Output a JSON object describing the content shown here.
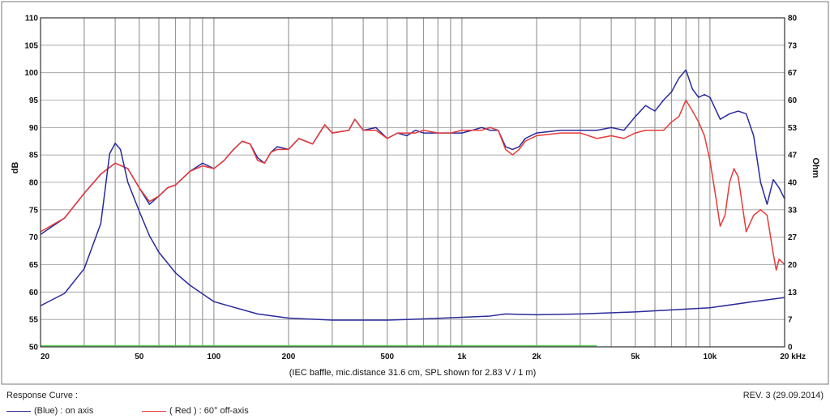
{
  "chart_data": {
    "type": "line",
    "title": "",
    "xscale": "log",
    "xlim": [
      20,
      20000
    ],
    "ylim_left": [
      50,
      110
    ],
    "ylim_right": [
      0,
      80
    ],
    "ylabel_left": "dB",
    "ylabel_right": "Ohm",
    "note": "(IEC baffle, mic.distance 31.6 cm, SPL shown for 2.83 V / 1 m)",
    "grid": true,
    "x_tick_labels": [
      {
        "v": 20,
        "t": "20"
      },
      {
        "v": 50,
        "t": "50"
      },
      {
        "v": 100,
        "t": "100"
      },
      {
        "v": 200,
        "t": "200"
      },
      {
        "v": 500,
        "t": "500"
      },
      {
        "v": 1000,
        "t": "1k"
      },
      {
        "v": 2000,
        "t": "2k"
      },
      {
        "v": 5000,
        "t": "5k"
      },
      {
        "v": 10000,
        "t": "10k"
      },
      {
        "v": 20000,
        "t": "20 kHz"
      }
    ],
    "y_left_ticks": [
      50,
      55,
      60,
      65,
      70,
      75,
      80,
      85,
      90,
      95,
      100,
      105,
      110
    ],
    "y_right_ticks": [
      {
        "p": 0,
        "t": "0"
      },
      {
        "p": 6.67,
        "t": "7"
      },
      {
        "p": 13.33,
        "t": "13"
      },
      {
        "p": 20,
        "t": "20"
      },
      {
        "p": 26.67,
        "t": "27"
      },
      {
        "p": 33.33,
        "t": "33"
      },
      {
        "p": 40,
        "t": "40"
      },
      {
        "p": 46.67,
        "t": "47"
      },
      {
        "p": 53.33,
        "t": "53"
      },
      {
        "p": 60,
        "t": "60"
      },
      {
        "p": 66.67,
        "t": "67"
      },
      {
        "p": 73.33,
        "t": "73"
      },
      {
        "p": 80,
        "t": "80"
      }
    ],
    "series": [
      {
        "name": "on axis",
        "color": "#2a2a9c",
        "axis": "left",
        "points": [
          [
            20,
            70.5
          ],
          [
            25,
            73.5
          ],
          [
            30,
            78
          ],
          [
            35,
            81.5
          ],
          [
            40,
            83.5
          ],
          [
            45,
            82.5
          ],
          [
            50,
            79
          ],
          [
            55,
            76
          ],
          [
            60,
            77.5
          ],
          [
            65,
            79
          ],
          [
            70,
            79.5
          ],
          [
            80,
            82
          ],
          [
            90,
            83.5
          ],
          [
            100,
            82.5
          ],
          [
            110,
            84
          ],
          [
            120,
            86
          ],
          [
            130,
            87.5
          ],
          [
            140,
            87
          ],
          [
            150,
            84.5
          ],
          [
            160,
            83.5
          ],
          [
            170,
            85.5
          ],
          [
            180,
            86.5
          ],
          [
            200,
            86
          ],
          [
            220,
            88
          ],
          [
            250,
            87
          ],
          [
            280,
            90.5
          ],
          [
            300,
            89
          ],
          [
            350,
            89.5
          ],
          [
            370,
            91.5
          ],
          [
            400,
            89.5
          ],
          [
            450,
            90
          ],
          [
            500,
            88
          ],
          [
            550,
            89
          ],
          [
            600,
            88.5
          ],
          [
            650,
            89.5
          ],
          [
            700,
            89
          ],
          [
            800,
            89
          ],
          [
            900,
            89
          ],
          [
            1000,
            89
          ],
          [
            1100,
            89.5
          ],
          [
            1200,
            90
          ],
          [
            1300,
            89.5
          ],
          [
            1400,
            89.5
          ],
          [
            1500,
            86.5
          ],
          [
            1600,
            86
          ],
          [
            1700,
            86.5
          ],
          [
            1800,
            88
          ],
          [
            2000,
            89
          ],
          [
            2500,
            89.5
          ],
          [
            3000,
            89.5
          ],
          [
            3500,
            89.5
          ],
          [
            4000,
            90
          ],
          [
            4500,
            89.5
          ],
          [
            5000,
            92
          ],
          [
            5500,
            94
          ],
          [
            6000,
            93
          ],
          [
            6500,
            95
          ],
          [
            7000,
            96.5
          ],
          [
            7500,
            99
          ],
          [
            8000,
            100.5
          ],
          [
            8500,
            97
          ],
          [
            9000,
            95.5
          ],
          [
            9500,
            96
          ],
          [
            10000,
            95.5
          ],
          [
            11000,
            91.5
          ],
          [
            12000,
            92.5
          ],
          [
            13000,
            93
          ],
          [
            14000,
            92.5
          ],
          [
            15000,
            88.5
          ],
          [
            16000,
            80
          ],
          [
            17000,
            76
          ],
          [
            18000,
            80.5
          ],
          [
            19000,
            79
          ],
          [
            20000,
            77
          ]
        ]
      },
      {
        "name": "60° off-axis",
        "color": "#e83a3a",
        "axis": "left",
        "points": [
          [
            20,
            71
          ],
          [
            25,
            73.5
          ],
          [
            30,
            78
          ],
          [
            35,
            81.5
          ],
          [
            40,
            83.5
          ],
          [
            45,
            82.5
          ],
          [
            50,
            79
          ],
          [
            55,
            76.5
          ],
          [
            60,
            77.5
          ],
          [
            65,
            79
          ],
          [
            70,
            79.5
          ],
          [
            80,
            82
          ],
          [
            90,
            83
          ],
          [
            100,
            82.5
          ],
          [
            110,
            84
          ],
          [
            120,
            86
          ],
          [
            130,
            87.5
          ],
          [
            140,
            87
          ],
          [
            150,
            84
          ],
          [
            160,
            83.5
          ],
          [
            170,
            85.5
          ],
          [
            180,
            86
          ],
          [
            200,
            86
          ],
          [
            220,
            88
          ],
          [
            250,
            87
          ],
          [
            280,
            90.5
          ],
          [
            300,
            89
          ],
          [
            350,
            89.5
          ],
          [
            370,
            91.5
          ],
          [
            400,
            89.5
          ],
          [
            450,
            89.5
          ],
          [
            500,
            88
          ],
          [
            550,
            89
          ],
          [
            600,
            89
          ],
          [
            650,
            89
          ],
          [
            700,
            89.5
          ],
          [
            800,
            89
          ],
          [
            900,
            89
          ],
          [
            1000,
            89.5
          ],
          [
            1100,
            89.5
          ],
          [
            1200,
            89.5
          ],
          [
            1300,
            90
          ],
          [
            1400,
            89.5
          ],
          [
            1500,
            86
          ],
          [
            1600,
            85
          ],
          [
            1700,
            86
          ],
          [
            1800,
            87.5
          ],
          [
            2000,
            88.5
          ],
          [
            2500,
            89
          ],
          [
            3000,
            89
          ],
          [
            3500,
            88
          ],
          [
            4000,
            88.5
          ],
          [
            4500,
            88
          ],
          [
            5000,
            89
          ],
          [
            5500,
            89.5
          ],
          [
            6000,
            89.5
          ],
          [
            6500,
            89.5
          ],
          [
            7000,
            91
          ],
          [
            7500,
            92
          ],
          [
            8000,
            95
          ],
          [
            8500,
            93
          ],
          [
            9000,
            91
          ],
          [
            9500,
            88.5
          ],
          [
            10000,
            84
          ],
          [
            10500,
            78
          ],
          [
            11000,
            72
          ],
          [
            11500,
            74
          ],
          [
            12000,
            80
          ],
          [
            12500,
            82.5
          ],
          [
            13000,
            81
          ],
          [
            14000,
            71
          ],
          [
            15000,
            74
          ],
          [
            16000,
            75
          ],
          [
            17000,
            74
          ],
          [
            18000,
            67
          ],
          [
            18500,
            64
          ],
          [
            19000,
            66
          ],
          [
            20000,
            65
          ]
        ]
      },
      {
        "name": "impedance",
        "color": "#2a2a9c",
        "axis": "right",
        "points": [
          [
            20,
            10
          ],
          [
            25,
            13
          ],
          [
            30,
            19
          ],
          [
            35,
            30
          ],
          [
            38,
            47
          ],
          [
            40,
            49.5
          ],
          [
            42,
            48
          ],
          [
            45,
            40
          ],
          [
            50,
            33
          ],
          [
            55,
            27
          ],
          [
            60,
            23
          ],
          [
            70,
            18
          ],
          [
            80,
            15
          ],
          [
            100,
            11
          ],
          [
            150,
            8
          ],
          [
            200,
            7
          ],
          [
            300,
            6.5
          ],
          [
            500,
            6.5
          ],
          [
            700,
            6.8
          ],
          [
            1000,
            7.2
          ],
          [
            1300,
            7.5
          ],
          [
            1500,
            8
          ],
          [
            2000,
            7.8
          ],
          [
            3000,
            8
          ],
          [
            5000,
            8.5
          ],
          [
            7000,
            9
          ],
          [
            10000,
            9.5
          ],
          [
            15000,
            11
          ],
          [
            20000,
            12
          ]
        ]
      },
      {
        "name": "reference",
        "color": "#4cd24c",
        "axis": "left",
        "points": [
          [
            20,
            50.2
          ],
          [
            3500,
            50.2
          ]
        ]
      }
    ]
  },
  "footer": {
    "title": "Response Curve :",
    "revision": "REV. 3 (29.09.2014)",
    "legend_blue": "(Blue) : on axis",
    "legend_red": "( Red ) : 60° off-axis"
  }
}
